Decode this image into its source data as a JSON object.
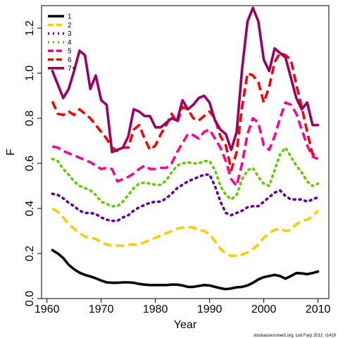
{
  "chart_data": {
    "type": "line",
    "title": "",
    "xlabel": "Year",
    "ylabel": "F",
    "xlim": [
      1959,
      2012
    ],
    "ylim": [
      0,
      1.3
    ],
    "x_ticks": [
      1960,
      1970,
      1980,
      1990,
      2000,
      2010
    ],
    "y_ticks": [
      0.0,
      0.2,
      0.4,
      0.6,
      0.8,
      1.0,
      1.2
    ],
    "grid": false,
    "legend_position": "top-left",
    "x": [
      1961,
      1962,
      1963,
      1964,
      1965,
      1966,
      1967,
      1968,
      1969,
      1970,
      1971,
      1972,
      1973,
      1974,
      1975,
      1976,
      1977,
      1978,
      1979,
      1980,
      1981,
      1982,
      1983,
      1984,
      1985,
      1986,
      1987,
      1988,
      1989,
      1990,
      1991,
      1992,
      1993,
      1994,
      1995,
      1996,
      1997,
      1998,
      1999,
      2000,
      2001,
      2002,
      2003,
      2004,
      2005,
      2006,
      2007,
      2008,
      2009,
      2010
    ],
    "series": [
      {
        "name": "1",
        "color": "#000000",
        "dash": "solid",
        "values": [
          0.215,
          0.2,
          0.18,
          0.15,
          0.13,
          0.115,
          0.105,
          0.098,
          0.09,
          0.08,
          0.072,
          0.07,
          0.07,
          0.072,
          0.072,
          0.07,
          0.065,
          0.062,
          0.06,
          0.06,
          0.06,
          0.06,
          0.062,
          0.062,
          0.058,
          0.052,
          0.052,
          0.056,
          0.06,
          0.058,
          0.052,
          0.046,
          0.042,
          0.045,
          0.05,
          0.052,
          0.058,
          0.07,
          0.085,
          0.095,
          0.1,
          0.105,
          0.1,
          0.088,
          0.1,
          0.113,
          0.112,
          0.108,
          0.113,
          0.12
        ]
      },
      {
        "name": "2",
        "color": "#ffcc00",
        "dash": "long",
        "values": [
          0.4,
          0.385,
          0.36,
          0.33,
          0.31,
          0.29,
          0.275,
          0.27,
          0.265,
          0.25,
          0.24,
          0.235,
          0.235,
          0.235,
          0.24,
          0.24,
          0.24,
          0.25,
          0.26,
          0.27,
          0.28,
          0.29,
          0.3,
          0.31,
          0.315,
          0.318,
          0.315,
          0.305,
          0.3,
          0.285,
          0.255,
          0.22,
          0.2,
          0.19,
          0.19,
          0.195,
          0.205,
          0.22,
          0.24,
          0.27,
          0.29,
          0.305,
          0.31,
          0.3,
          0.305,
          0.33,
          0.345,
          0.35,
          0.365,
          0.39
        ]
      },
      {
        "name": "3",
        "color": "#660099",
        "dash": "dot",
        "values": [
          0.465,
          0.46,
          0.445,
          0.425,
          0.41,
          0.39,
          0.38,
          0.38,
          0.375,
          0.36,
          0.35,
          0.345,
          0.345,
          0.36,
          0.37,
          0.39,
          0.405,
          0.415,
          0.425,
          0.43,
          0.43,
          0.445,
          0.465,
          0.49,
          0.505,
          0.52,
          0.53,
          0.54,
          0.55,
          0.55,
          0.5,
          0.43,
          0.38,
          0.37,
          0.38,
          0.39,
          0.405,
          0.41,
          0.41,
          0.43,
          0.45,
          0.47,
          0.48,
          0.455,
          0.44,
          0.44,
          0.44,
          0.43,
          0.44,
          0.45
        ]
      },
      {
        "name": "4",
        "color": "#66cc00",
        "dash": "dot",
        "values": [
          0.62,
          0.61,
          0.575,
          0.55,
          0.52,
          0.5,
          0.49,
          0.48,
          0.46,
          0.43,
          0.42,
          0.41,
          0.41,
          0.43,
          0.46,
          0.49,
          0.51,
          0.515,
          0.51,
          0.505,
          0.505,
          0.525,
          0.56,
          0.59,
          0.6,
          0.605,
          0.6,
          0.6,
          0.61,
          0.61,
          0.57,
          0.5,
          0.46,
          0.44,
          0.46,
          0.53,
          0.57,
          0.58,
          0.54,
          0.51,
          0.5,
          0.57,
          0.64,
          0.67,
          0.63,
          0.59,
          0.56,
          0.52,
          0.5,
          0.51
        ]
      },
      {
        "name": "5",
        "color": "#ff0099",
        "dash": "long",
        "values": [
          0.675,
          0.67,
          0.655,
          0.645,
          0.635,
          0.625,
          0.615,
          0.605,
          0.59,
          0.575,
          0.58,
          0.575,
          0.52,
          0.53,
          0.54,
          0.555,
          0.575,
          0.59,
          0.575,
          0.575,
          0.58,
          0.58,
          0.6,
          0.65,
          0.69,
          0.73,
          0.725,
          0.71,
          0.74,
          0.75,
          0.71,
          0.67,
          0.61,
          0.53,
          0.5,
          0.6,
          0.73,
          0.8,
          0.78,
          0.68,
          0.66,
          0.72,
          0.8,
          0.87,
          0.86,
          0.82,
          0.75,
          0.68,
          0.63,
          0.62
        ]
      },
      {
        "name": "6",
        "color": "#ff0000",
        "dash": "long",
        "values": [
          0.875,
          0.82,
          0.815,
          0.83,
          0.815,
          0.84,
          0.82,
          0.8,
          0.77,
          0.74,
          0.71,
          0.67,
          0.655,
          0.67,
          0.67,
          0.75,
          0.77,
          0.71,
          0.66,
          0.68,
          0.73,
          0.77,
          0.82,
          0.78,
          0.85,
          0.84,
          0.8,
          0.79,
          0.81,
          0.83,
          0.8,
          0.72,
          0.68,
          0.57,
          0.65,
          0.85,
          1.0,
          0.99,
          0.96,
          0.87,
          0.94,
          1.05,
          1.09,
          1.08,
          1.06,
          0.95,
          0.85,
          0.74,
          0.64,
          0.64
        ]
      },
      {
        "name": "7+",
        "color": "#990066",
        "dash": "solid",
        "values": [
          1.01,
          0.95,
          0.89,
          0.93,
          1.01,
          1.1,
          1.08,
          0.93,
          0.99,
          0.88,
          0.86,
          0.65,
          0.66,
          0.67,
          0.72,
          0.84,
          0.83,
          0.81,
          0.81,
          0.76,
          0.76,
          0.78,
          0.8,
          0.79,
          0.88,
          0.84,
          0.86,
          0.89,
          0.9,
          0.87,
          0.79,
          0.75,
          0.73,
          0.66,
          0.74,
          1.02,
          1.23,
          1.29,
          1.23,
          1.06,
          1.01,
          1.11,
          1.09,
          1.07,
          0.98,
          0.89,
          0.84,
          0.87,
          0.77,
          0.77
        ]
      }
    ],
    "footnote": "stockassessment.org, cod Farp 2012. r1419"
  }
}
